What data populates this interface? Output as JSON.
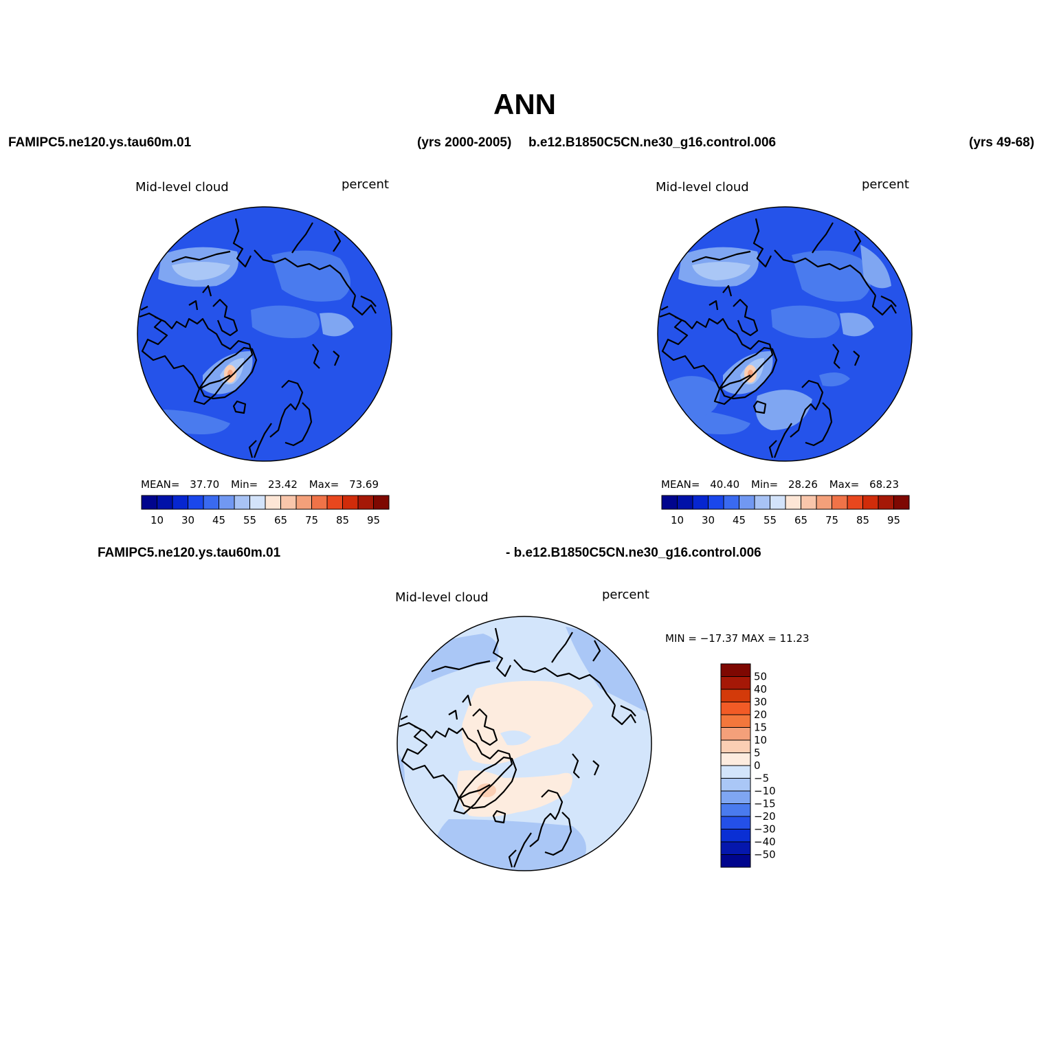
{
  "figure": {
    "title": "ANN",
    "left_case": "FAMIPC5.ne120.ys.tau60m.01",
    "left_years": "(yrs 2000-2005)",
    "right_case": "b.e12.B1850C5CN.ne30_g16.control.006",
    "right_years": "(yrs 49-68)",
    "diff_case_a": "FAMIPC5.ne120.ys.tau60m.01",
    "diff_case_b": "- b.e12.B1850C5CN.ne30_g16.control.006"
  },
  "panels": [
    {
      "variable": "Mid-level cloud",
      "units": "percent",
      "stats": {
        "mean_label": "MEAN=",
        "mean": "37.70",
        "min_label": "Min=",
        "min": "23.42",
        "max_label": "Max=",
        "max": "73.69"
      }
    },
    {
      "variable": "Mid-level cloud",
      "units": "percent",
      "stats": {
        "mean_label": "MEAN=",
        "mean": "40.40",
        "min_label": "Min=",
        "min": "28.26",
        "max_label": "Max=",
        "max": "68.23"
      }
    },
    {
      "variable": "Mid-level cloud",
      "units": "percent",
      "stats_text": "MIN = −17.37  MAX =   11.23"
    }
  ],
  "colorbar_abs": {
    "colors": [
      "#00058d",
      "#0011a8",
      "#0626d0",
      "#1a47ec",
      "#3a6af0",
      "#7198f2",
      "#a8c3f5",
      "#d3e3fa",
      "#fde6d6",
      "#f9c6ab",
      "#f4a07a",
      "#f07348",
      "#e8471e",
      "#d02c0a",
      "#a51807",
      "#7e0802"
    ],
    "ticks": [
      "10",
      "30",
      "45",
      "55",
      "65",
      "75",
      "85",
      "95"
    ]
  },
  "colorbar_diff": {
    "colors": [
      "#7e0802",
      "#a51807",
      "#d33a0a",
      "#f25b26",
      "#f3773c",
      "#f4a07a",
      "#fbcfb4",
      "#fdecdf",
      "#d3e5fb",
      "#aac7f6",
      "#7fa6f2",
      "#4a7bee",
      "#2450e8",
      "#0a2fd4",
      "#0517ad",
      "#00058d"
    ],
    "labels": [
      "50",
      "40",
      "30",
      "20",
      "15",
      "10",
      "5",
      "0",
      "−5",
      "−10",
      "−15",
      "−20",
      "−30",
      "−40",
      "−50"
    ]
  },
  "map_colors": {
    "base_top": "#2553ea",
    "mid1": "#4a7bee",
    "mid2": "#7fa6f2",
    "light": "#aac7f6",
    "warm": "#fbcfb4",
    "warm2": "#f4a07a",
    "diff_base": "#d3e5fb",
    "diff_light": "#aac7f6",
    "diff_warm": "#fdecdf",
    "diff_warm2": "#fbcfb4"
  }
}
